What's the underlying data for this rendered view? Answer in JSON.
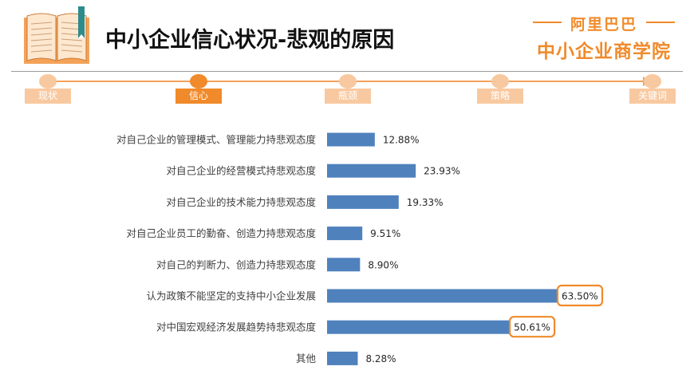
{
  "header": {
    "title": "中小企业信心状况-悲观的原因",
    "brand_line1": "阿里巴巴",
    "brand_line2": "中小企业商学院"
  },
  "nav": {
    "items": [
      {
        "label": "现状",
        "active": false
      },
      {
        "label": "信心",
        "active": true
      },
      {
        "label": "瓶颈",
        "active": false
      },
      {
        "label": "策略",
        "active": false
      },
      {
        "label": "关键词",
        "active": false
      }
    ]
  },
  "colors": {
    "bar": "#4f81bd",
    "accent": "#f08a2a",
    "nav_inactive": "#f8c9a0",
    "highlight_border": "#f08a2a"
  },
  "chart_data": {
    "type": "bar",
    "orientation": "horizontal",
    "title": "",
    "xlabel": "",
    "ylabel": "",
    "grid": false,
    "categories": [
      "对自己企业的管理模式、管理能力持悲观态度",
      "对自己企业的经营模式持悲观态度",
      "对自己企业的技术能力持悲观态度",
      "对自己企业员工的勤奋、创造力持悲观态度",
      "对自己的判断力、创造力持悲观态度",
      "认为政策不能坚定的支持中小企业发展",
      "对中国宏观经济发展趋势持悲观态度",
      "其他"
    ],
    "values": [
      12.88,
      23.93,
      19.33,
      9.51,
      8.9,
      63.5,
      50.61,
      8.28
    ],
    "value_labels": [
      "12.88%",
      "23.93%",
      "19.33%",
      "9.51%",
      "8.90%",
      "63.50%",
      "50.61%",
      "8.28%"
    ],
    "highlighted": [
      false,
      false,
      false,
      false,
      false,
      true,
      true,
      false
    ],
    "xlim": [
      0,
      70
    ]
  }
}
